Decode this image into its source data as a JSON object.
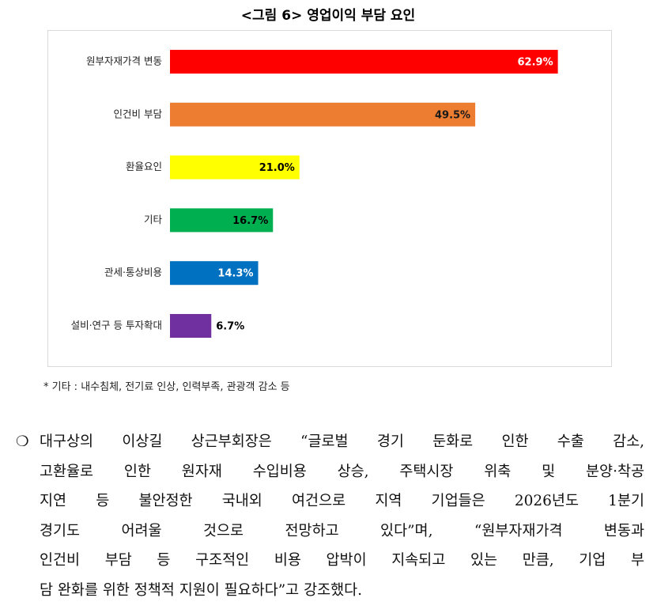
{
  "chart_data": {
    "type": "hbar",
    "title": "<그림 6> 영업이익 부담 요인",
    "categories": [
      "원부자재가격 변동",
      "인건비 부담",
      "환율요인",
      "기타",
      "관세·통상비용",
      "설비·연구 등 투자확대"
    ],
    "values": [
      62.9,
      49.5,
      21.0,
      16.7,
      14.3,
      6.7
    ],
    "value_labels": [
      "62.9%",
      "49.5%",
      "21.0%",
      "16.7%",
      "14.3%",
      "6.7%"
    ],
    "colors": [
      "#ff0000",
      "#ed7d31",
      "#ffff00",
      "#00b050",
      "#0070c0",
      "#7030a0"
    ],
    "label_colors": [
      "#ffffff",
      "#1a1a1a",
      "#000000",
      "#000000",
      "#ffffff",
      "#000000"
    ]
  },
  "footnote": "* 기타 : 내수침체, 전기료 인상, 인력부족, 관광객 감소 등",
  "paragraph": {
    "bullet": "❍",
    "lines": [
      "대구상의 이상길 상근부회장은 “글로벌 경기 둔화로 인한 수출 감소,",
      "고환율로 인한 원자재 수입비용 상승, 주택시장 위축 및 분양·착공",
      "지연 등 불안정한 국내외 여건으로 지역 기업들은 2026년도 1분기",
      "경기도 어려울 것으로 전망하고 있다”며, “원부자재가격 변동과",
      "인건비 부담 등 구조적인 비용 압박이 지속되고 있는 만큼, 기업 부",
      "담 완화를 위한 정책적 지원이 필요하다”고 강조했다."
    ]
  }
}
